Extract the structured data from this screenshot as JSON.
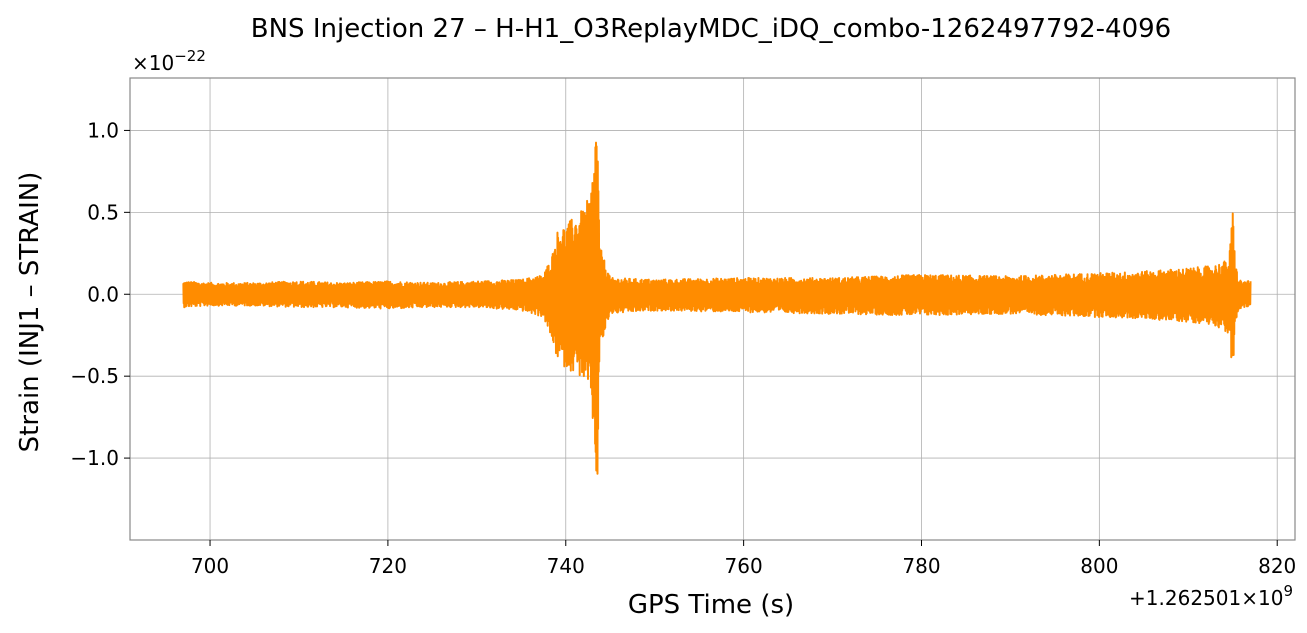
{
  "chart_data": {
    "type": "line",
    "title": "BNS Injection 27 – H-H1_O3ReplayMDC_iDQ_combo-1262497792-4096",
    "xlabel": "GPS Time (s)",
    "ylabel": "Strain (INJ1 – STRAIN)",
    "x_offset_label": "+1.262501×10",
    "x_offset_exp": "9",
    "y_scale_label": "×10",
    "y_scale_exp": "−22",
    "xlim": [
      691,
      822
    ],
    "ylim": [
      -1.5,
      1.32
    ],
    "xticks": [
      700,
      720,
      740,
      760,
      780,
      800,
      820
    ],
    "xtick_labels": [
      "700",
      "720",
      "740",
      "760",
      "780",
      "800",
      "820"
    ],
    "yticks": [
      -1.0,
      -0.5,
      0.0,
      0.5,
      1.0
    ],
    "ytick_labels": [
      "−1.0",
      "−0.5",
      "0.0",
      "0.5",
      "1.0"
    ],
    "grid": true,
    "series": [
      {
        "color": "#ff8c00",
        "envelope": {
          "x": [
            697.0,
            700,
            705,
            710,
            715,
            720,
            725,
            730,
            735,
            737.5,
            738.5,
            739.2,
            740,
            741,
            742,
            742.8,
            743.2,
            743.5,
            743.8,
            745,
            750,
            760,
            770,
            780,
            790,
            800,
            805,
            810,
            812,
            813,
            814,
            814.6,
            815.0,
            815.3,
            815.6,
            816,
            817.0
          ],
          "upper": [
            0.08,
            0.07,
            0.07,
            0.08,
            0.07,
            0.08,
            0.07,
            0.08,
            0.09,
            0.12,
            0.25,
            0.42,
            0.42,
            0.48,
            0.52,
            0.62,
            0.85,
            1.2,
            0.3,
            0.1,
            0.09,
            0.1,
            0.1,
            0.12,
            0.11,
            0.13,
            0.14,
            0.16,
            0.17,
            0.18,
            0.2,
            0.22,
            0.52,
            0.2,
            0.1,
            0.08,
            0.08
          ],
          "lower": [
            -0.08,
            -0.07,
            -0.07,
            -0.08,
            -0.08,
            -0.09,
            -0.08,
            -0.08,
            -0.1,
            -0.14,
            -0.3,
            -0.42,
            -0.45,
            -0.48,
            -0.52,
            -0.65,
            -0.9,
            -1.37,
            -0.35,
            -0.12,
            -0.1,
            -0.11,
            -0.12,
            -0.13,
            -0.12,
            -0.14,
            -0.15,
            -0.17,
            -0.18,
            -0.19,
            -0.22,
            -0.25,
            -0.52,
            -0.22,
            -0.1,
            -0.08,
            -0.08
          ]
        }
      }
    ]
  }
}
